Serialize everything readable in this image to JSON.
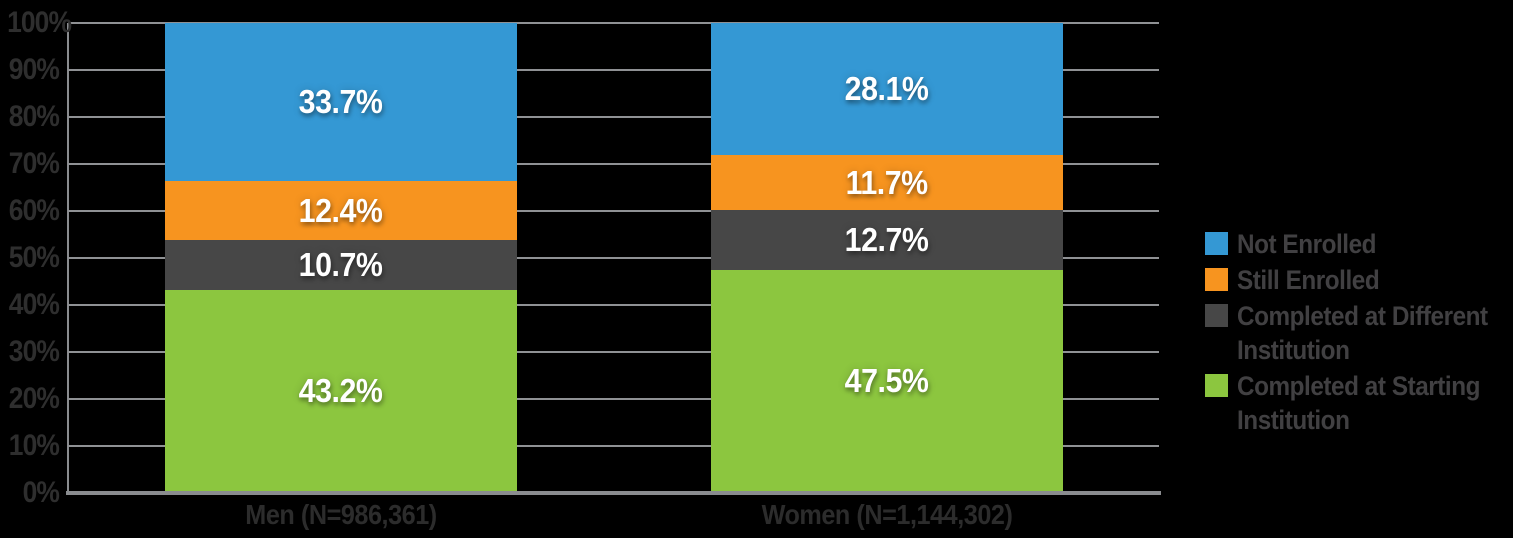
{
  "chart_data": {
    "type": "bar",
    "variant": "stacked-column",
    "title": "",
    "categories": [
      "Men (N=986,361)",
      "Women (N=1,144,302)"
    ],
    "series": [
      {
        "name": "Not Enrolled",
        "color": "#3498d4",
        "values": [
          33.7,
          28.1
        ]
      },
      {
        "name": "Still Enrolled",
        "color": "#f7941f",
        "values": [
          12.4,
          11.7
        ]
      },
      {
        "name": "Completed at Different Institution",
        "color": "#474747",
        "values": [
          10.7,
          12.7
        ]
      },
      {
        "name": "Completed at Starting Institution",
        "color": "#8cc63f",
        "values": [
          43.2,
          47.5
        ]
      }
    ],
    "stack_order": "top-to-bottom",
    "value_suffix": "%",
    "y_axis": {
      "min": 0,
      "max": 100,
      "step": 10,
      "tick_labels": [
        "0%",
        "10%",
        "20%",
        "30%",
        "40%",
        "50%",
        "60%",
        "70%",
        "80%",
        "90%",
        "100%"
      ]
    },
    "grid": true,
    "legend_position": "right",
    "colors": {
      "background": "#000000",
      "grid_line": "#8f9194",
      "axis_line": "#8a8c8f",
      "tick_text": "#2e2e2e",
      "category_text": "#2c2c2c",
      "legend_text": "#414042",
      "value_text": "#ffffff"
    }
  }
}
